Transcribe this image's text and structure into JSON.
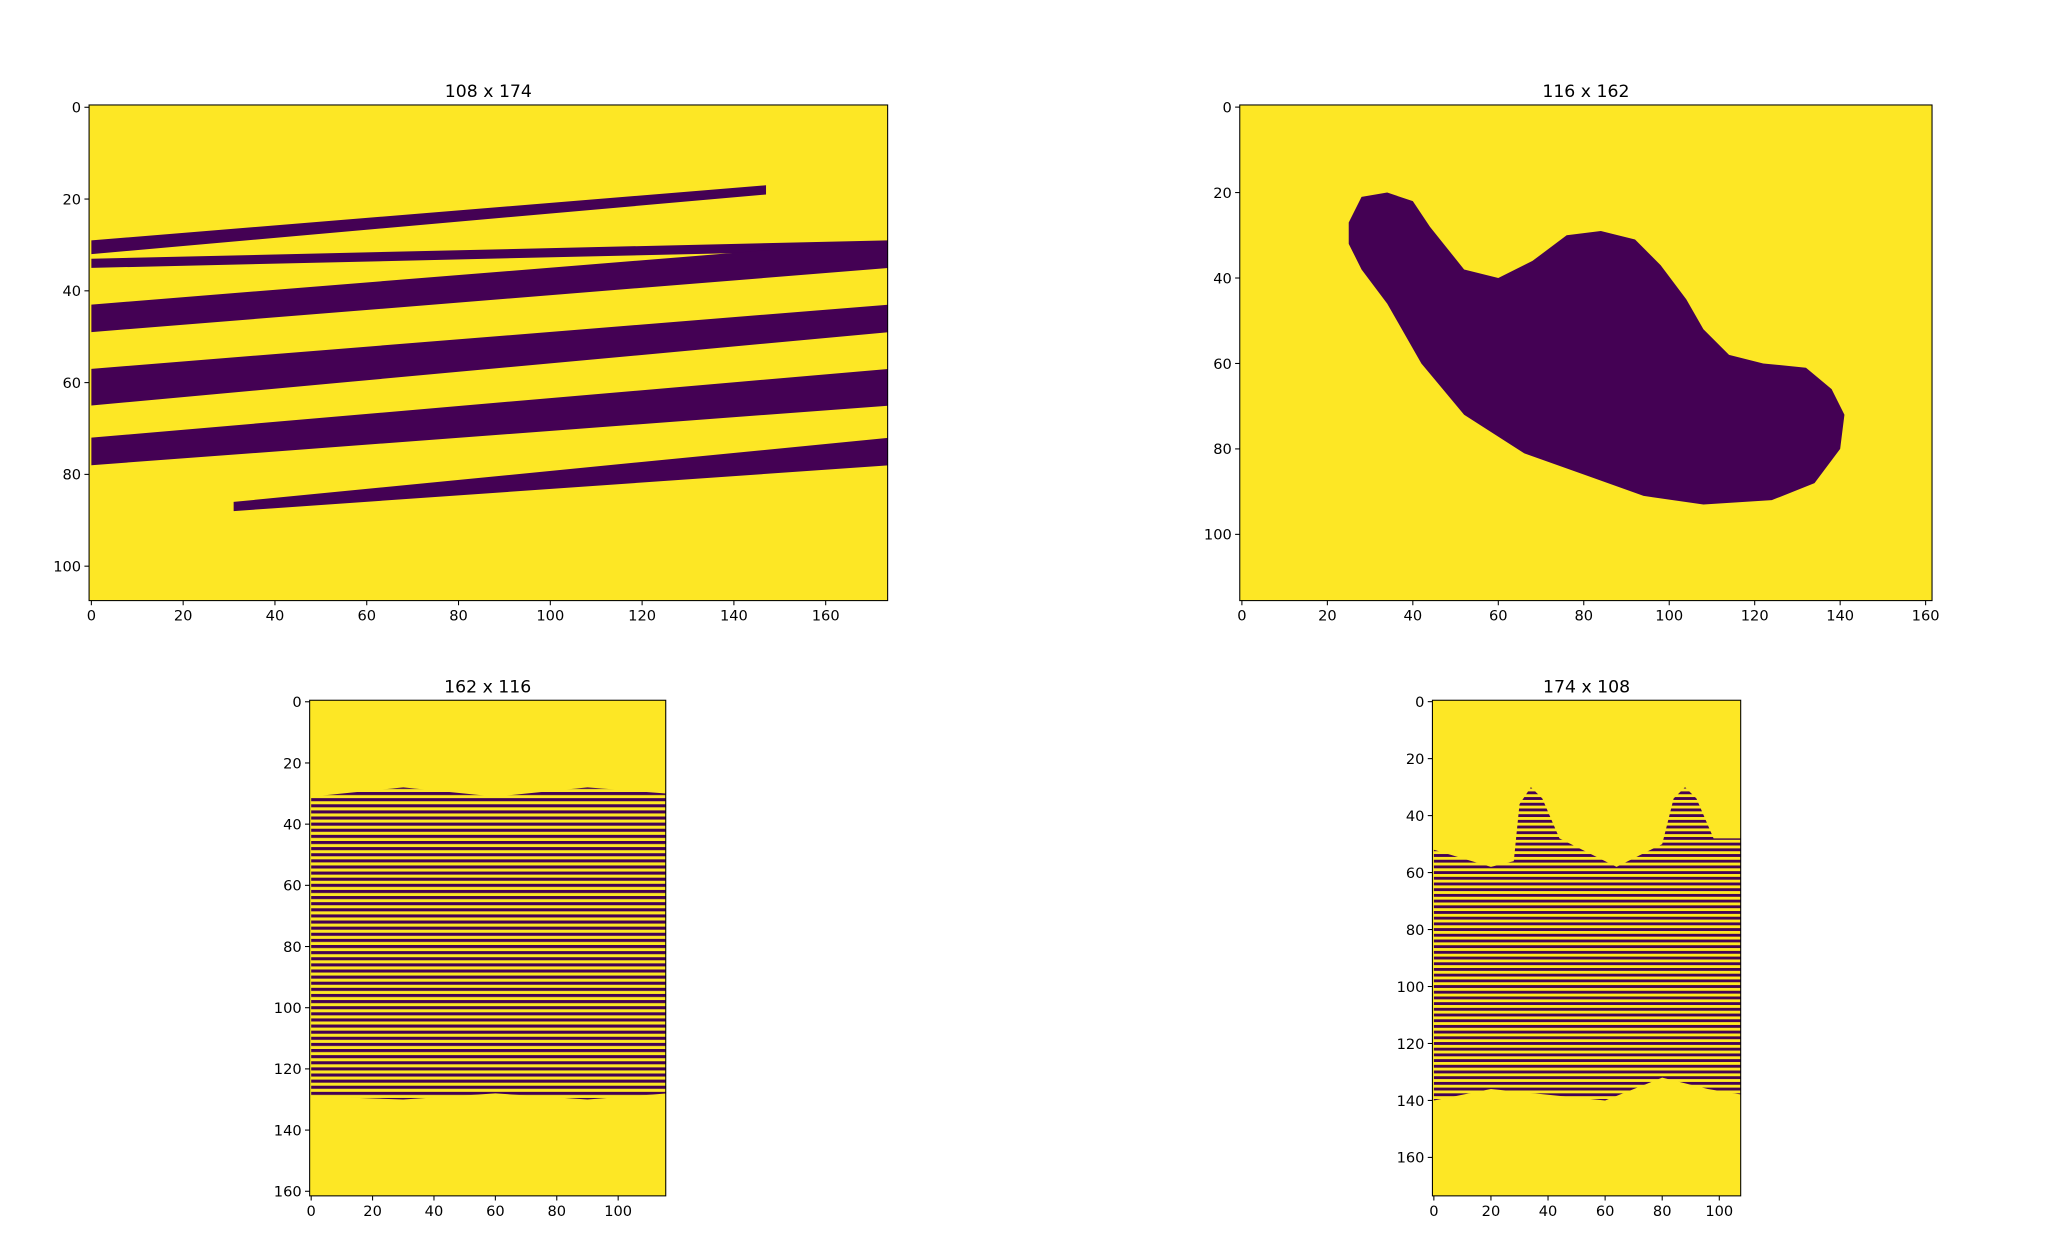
{
  "chart_data": [
    {
      "type": "mask",
      "title": "108 x 174",
      "colors": [
        "#440154",
        "#fde725"
      ],
      "pattern": "solid",
      "xlim": [
        -0.5,
        173.5
      ],
      "ylim": [
        107.5,
        -0.5
      ],
      "xticks": [
        0,
        20,
        40,
        60,
        80,
        100,
        120,
        140,
        160
      ],
      "yticks": [
        0,
        20,
        40,
        60,
        80,
        100
      ],
      "regions": [
        [
          [
            0,
            29
          ],
          [
            147,
            17
          ],
          [
            147,
            19
          ],
          [
            0,
            32
          ]
        ],
        [
          [
            0,
            33
          ],
          [
            174,
            29
          ],
          [
            174,
            31
          ],
          [
            0,
            35
          ]
        ],
        [
          [
            0,
            43
          ],
          [
            174,
            29
          ],
          [
            174,
            35
          ],
          [
            0,
            49
          ]
        ],
        [
          [
            0,
            57
          ],
          [
            174,
            43
          ],
          [
            174,
            49
          ],
          [
            0,
            65
          ]
        ],
        [
          [
            0,
            72
          ],
          [
            174,
            57
          ],
          [
            174,
            65
          ],
          [
            0,
            78
          ]
        ],
        [
          [
            31,
            86
          ],
          [
            174,
            72
          ],
          [
            174,
            78
          ],
          [
            31,
            88
          ]
        ]
      ]
    },
    {
      "type": "mask",
      "title": "116 x 162",
      "colors": [
        "#440154",
        "#fde725"
      ],
      "pattern": "solid",
      "xlim": [
        -0.5,
        161.5
      ],
      "ylim": [
        115.5,
        -0.5
      ],
      "xticks": [
        0,
        20,
        40,
        60,
        80,
        100,
        120,
        140,
        160
      ],
      "yticks": [
        0,
        20,
        40,
        60,
        80,
        100
      ],
      "regions": [
        [
          [
            25,
            27
          ],
          [
            28,
            21
          ],
          [
            34,
            20
          ],
          [
            40,
            22
          ],
          [
            44,
            28
          ],
          [
            48,
            33
          ],
          [
            52,
            38
          ],
          [
            60,
            40
          ],
          [
            68,
            36
          ],
          [
            76,
            30
          ],
          [
            84,
            29
          ],
          [
            92,
            31
          ],
          [
            98,
            37
          ],
          [
            104,
            45
          ],
          [
            108,
            52
          ],
          [
            114,
            58
          ],
          [
            122,
            60
          ],
          [
            132,
            61
          ],
          [
            138,
            66
          ],
          [
            141,
            72
          ],
          [
            140,
            80
          ],
          [
            134,
            88
          ],
          [
            124,
            92
          ],
          [
            108,
            93
          ],
          [
            94,
            91
          ],
          [
            80,
            86
          ],
          [
            66,
            81
          ],
          [
            52,
            72
          ],
          [
            42,
            60
          ],
          [
            34,
            46
          ],
          [
            28,
            38
          ],
          [
            25,
            32
          ]
        ]
      ]
    },
    {
      "type": "mask",
      "title": "162 x 116",
      "colors": [
        "#440154",
        "#fde725"
      ],
      "pattern": "rows",
      "xlim": [
        -0.5,
        115.5
      ],
      "ylim": [
        161.5,
        -0.5
      ],
      "xticks": [
        0,
        20,
        40,
        60,
        80,
        100
      ],
      "yticks": [
        0,
        20,
        40,
        60,
        80,
        100,
        120,
        140,
        160
      ],
      "regions": [
        [
          [
            0,
            31
          ],
          [
            30,
            28
          ],
          [
            60,
            31
          ],
          [
            90,
            28
          ],
          [
            116,
            30
          ],
          [
            116,
            128
          ],
          [
            90,
            130
          ],
          [
            60,
            128
          ],
          [
            30,
            130
          ],
          [
            0,
            129
          ]
        ]
      ]
    },
    {
      "type": "mask",
      "title": "174 x 108",
      "colors": [
        "#440154",
        "#fde725"
      ],
      "pattern": "rows",
      "xlim": [
        -0.5,
        107.5
      ],
      "ylim": [
        173.5,
        -0.5
      ],
      "xticks": [
        0,
        20,
        40,
        60,
        80,
        100
      ],
      "yticks": [
        0,
        20,
        40,
        60,
        80,
        100,
        120,
        140,
        160
      ],
      "regions": [
        [
          [
            0,
            52
          ],
          [
            20,
            58
          ],
          [
            28,
            56
          ],
          [
            30,
            36
          ],
          [
            34,
            30
          ],
          [
            38,
            34
          ],
          [
            44,
            48
          ],
          [
            64,
            58
          ],
          [
            80,
            50
          ],
          [
            84,
            34
          ],
          [
            88,
            30
          ],
          [
            92,
            34
          ],
          [
            98,
            48
          ],
          [
            108,
            48
          ],
          [
            108,
            138
          ],
          [
            96,
            136
          ],
          [
            80,
            132
          ],
          [
            60,
            140
          ],
          [
            40,
            138
          ],
          [
            20,
            136
          ],
          [
            0,
            140
          ]
        ]
      ]
    }
  ]
}
